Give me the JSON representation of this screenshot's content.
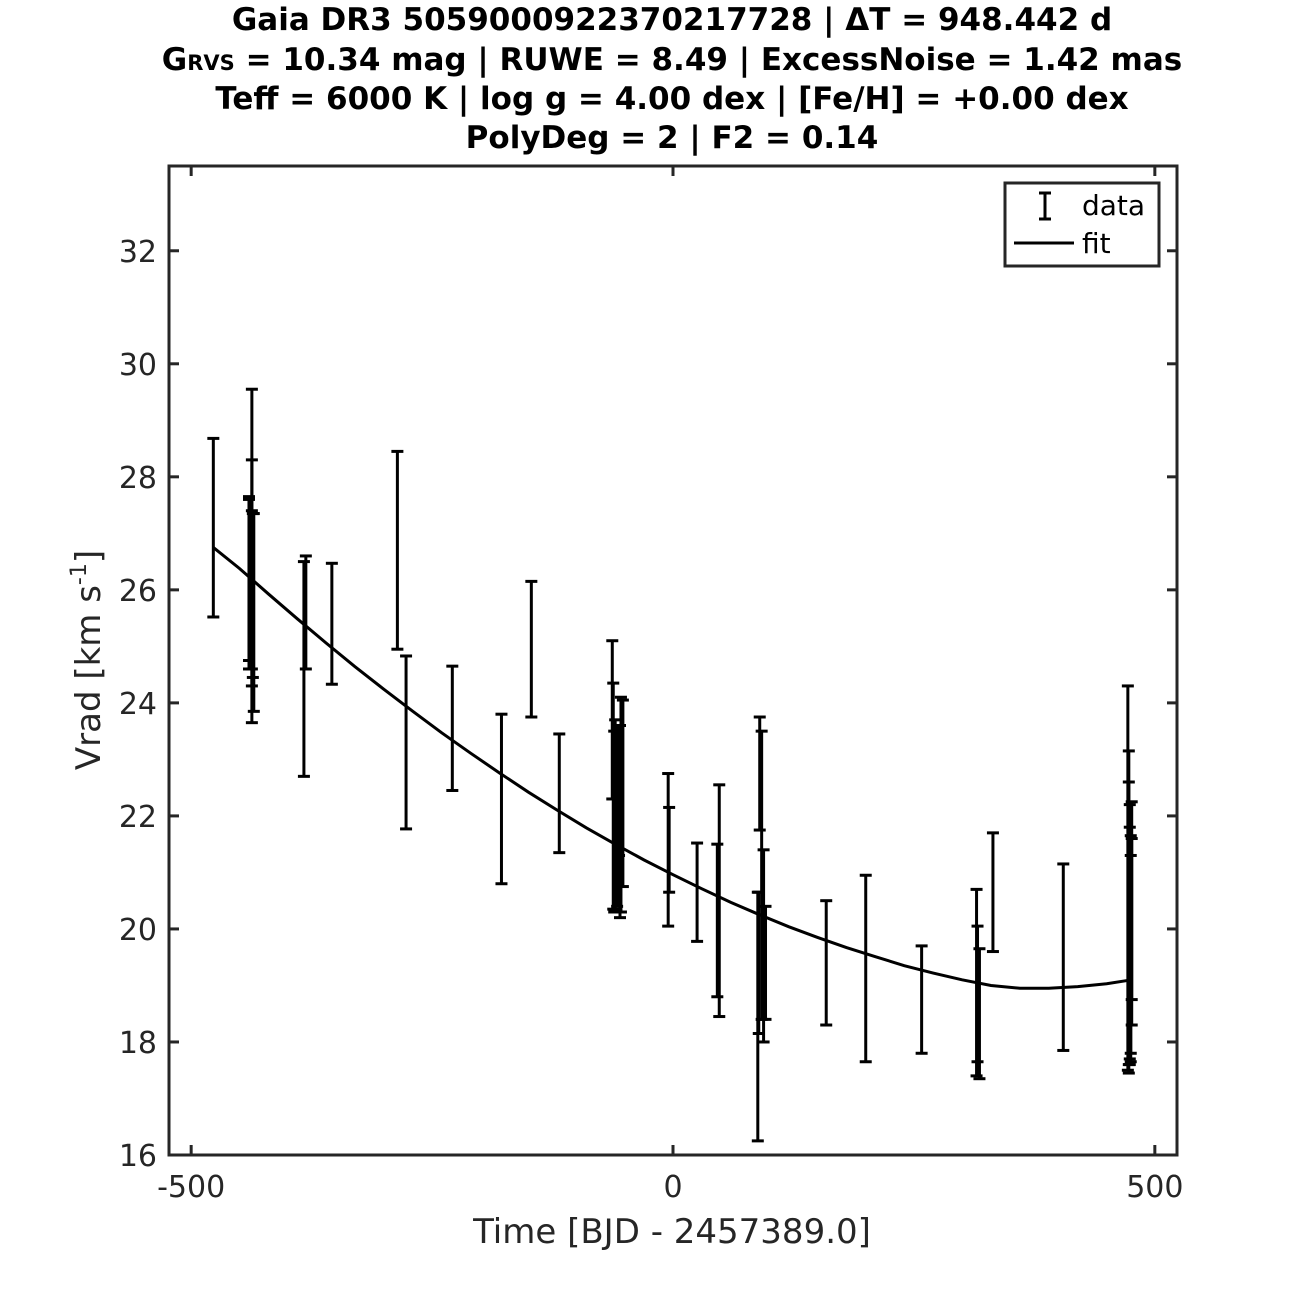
{
  "title_lines": [
    "Gaia DR3 5059000922370217728 | ΔT = 948.442 d",
    "G_RVS = 10.34 mag | RUWE = 8.49 | ExcessNoise = 1.42 mas",
    "Teff = 6000 K | log g = 4.00 dex | [Fe/H] = +0.00 dex",
    "PolyDeg = 2 | F2 = 0.14"
  ],
  "title_g_parts": {
    "base": "G",
    "subscript": "RVS",
    "rest": " = 10.34 mag | RUWE = 8.49 | ExcessNoise = 1.42 mas"
  },
  "chart_data": {
    "type": "scatter",
    "xlabel": "Time [BJD - 2457389.0]",
    "ylabel_base": "Vrad [km s",
    "ylabel_sup": "-1",
    "ylabel_end": "]",
    "xlim": [
      -523,
      523
    ],
    "ylim": [
      16,
      33.5
    ],
    "xticks": [
      -500,
      0,
      500
    ],
    "xtick_labels": [
      "-500",
      "0",
      "500"
    ],
    "yticks": [
      16,
      18,
      20,
      22,
      24,
      26,
      28,
      30,
      32
    ],
    "ytick_labels": [
      "16",
      "18",
      "20",
      "22",
      "24",
      "26",
      "28",
      "30",
      "32"
    ],
    "grid": false,
    "legend": {
      "position": "top-right",
      "entries": [
        "data",
        "fit"
      ]
    },
    "series": [
      {
        "name": "data",
        "kind": "errorbar",
        "points": [
          {
            "x": -477,
            "y": 27.1,
            "err": 1.58
          },
          {
            "x": -440,
            "y": 26.1,
            "err": 1.5
          },
          {
            "x": -440,
            "y": 26.2,
            "err": 1.45
          },
          {
            "x": -437,
            "y": 26.0,
            "err": 1.4
          },
          {
            "x": -437,
            "y": 26.6,
            "err": 2.95
          },
          {
            "x": -437,
            "y": 26.3,
            "err": 2.0
          },
          {
            "x": -436,
            "y": 25.9,
            "err": 1.45
          },
          {
            "x": -435,
            "y": 25.6,
            "err": 1.75
          },
          {
            "x": -383,
            "y": 24.6,
            "err": 1.9
          },
          {
            "x": -381,
            "y": 25.6,
            "err": 1.0
          },
          {
            "x": -354,
            "y": 25.4,
            "err": 1.07
          },
          {
            "x": -286,
            "y": 26.7,
            "err": 1.75
          },
          {
            "x": -277,
            "y": 23.3,
            "err": 1.53
          },
          {
            "x": -229,
            "y": 23.55,
            "err": 1.1
          },
          {
            "x": -178,
            "y": 22.3,
            "err": 1.5
          },
          {
            "x": -147,
            "y": 24.95,
            "err": 1.2
          },
          {
            "x": -118,
            "y": 22.4,
            "err": 1.05
          },
          {
            "x": -63,
            "y": 23.7,
            "err": 1.4
          },
          {
            "x": -62,
            "y": 22.35,
            "err": 2.0
          },
          {
            "x": -61,
            "y": 21.9,
            "err": 1.6
          },
          {
            "x": -60,
            "y": 22.0,
            "err": 1.7
          },
          {
            "x": -58,
            "y": 22.0,
            "err": 1.6
          },
          {
            "x": -56,
            "y": 22.45,
            "err": 1.15
          },
          {
            "x": -55,
            "y": 21.9,
            "err": 1.7
          },
          {
            "x": -54,
            "y": 22.2,
            "err": 1.9
          },
          {
            "x": -52,
            "y": 22.4,
            "err": 1.65
          },
          {
            "x": -5,
            "y": 21.4,
            "err": 1.35
          },
          {
            "x": -4,
            "y": 21.4,
            "err": 0.75
          },
          {
            "x": 25,
            "y": 20.65,
            "err": 0.87
          },
          {
            "x": 46,
            "y": 20.15,
            "err": 1.35
          },
          {
            "x": 48,
            "y": 20.5,
            "err": 2.05
          },
          {
            "x": 88,
            "y": 18.45,
            "err": 2.2
          },
          {
            "x": 89,
            "y": 19.4,
            "err": 1.25
          },
          {
            "x": 90,
            "y": 22.75,
            "err": 1.0
          },
          {
            "x": 92,
            "y": 20.95,
            "err": 2.55
          },
          {
            "x": 94,
            "y": 19.7,
            "err": 1.7
          },
          {
            "x": 96,
            "y": 19.4,
            "err": 1.0
          },
          {
            "x": 159,
            "y": 19.4,
            "err": 1.1
          },
          {
            "x": 200,
            "y": 19.3,
            "err": 1.65
          },
          {
            "x": 258,
            "y": 18.75,
            "err": 0.95
          },
          {
            "x": 315,
            "y": 19.05,
            "err": 1.65
          },
          {
            "x": 316,
            "y": 18.85,
            "err": 1.2
          },
          {
            "x": 318,
            "y": 18.5,
            "err": 1.15
          },
          {
            "x": 332,
            "y": 20.65,
            "err": 1.05
          },
          {
            "x": 405,
            "y": 19.5,
            "err": 1.65
          },
          {
            "x": 472,
            "y": 20.9,
            "err": 3.4
          },
          {
            "x": 473,
            "y": 20.3,
            "err": 2.85
          },
          {
            "x": 473,
            "y": 20.1,
            "err": 2.5
          },
          {
            "x": 474,
            "y": 19.9,
            "err": 2.3
          },
          {
            "x": 474,
            "y": 19.75,
            "err": 2.05
          },
          {
            "x": 475,
            "y": 19.65,
            "err": 2.0
          },
          {
            "x": 475,
            "y": 19.55,
            "err": 1.75
          },
          {
            "x": 476,
            "y": 19.95,
            "err": 1.65
          },
          {
            "x": 476,
            "y": 20.5,
            "err": 1.75
          }
        ]
      },
      {
        "name": "fit",
        "kind": "line",
        "x": [
          -477,
          -450,
          -420,
          -390,
          -360,
          -330,
          -300,
          -270,
          -240,
          -210,
          -180,
          -150,
          -120,
          -90,
          -60,
          -30,
          0,
          30,
          60,
          90,
          120,
          150,
          180,
          210,
          240,
          270,
          300,
          330,
          360,
          390,
          420,
          450,
          476
        ],
        "y": [
          26.75,
          26.38,
          25.93,
          25.49,
          25.06,
          24.64,
          24.24,
          23.85,
          23.47,
          23.11,
          22.76,
          22.42,
          22.1,
          21.79,
          21.5,
          21.22,
          20.96,
          20.71,
          20.47,
          20.25,
          20.04,
          19.85,
          19.67,
          19.51,
          19.35,
          19.22,
          19.1,
          19.0,
          18.95,
          18.95,
          18.98,
          19.03,
          19.1
        ]
      }
    ]
  }
}
